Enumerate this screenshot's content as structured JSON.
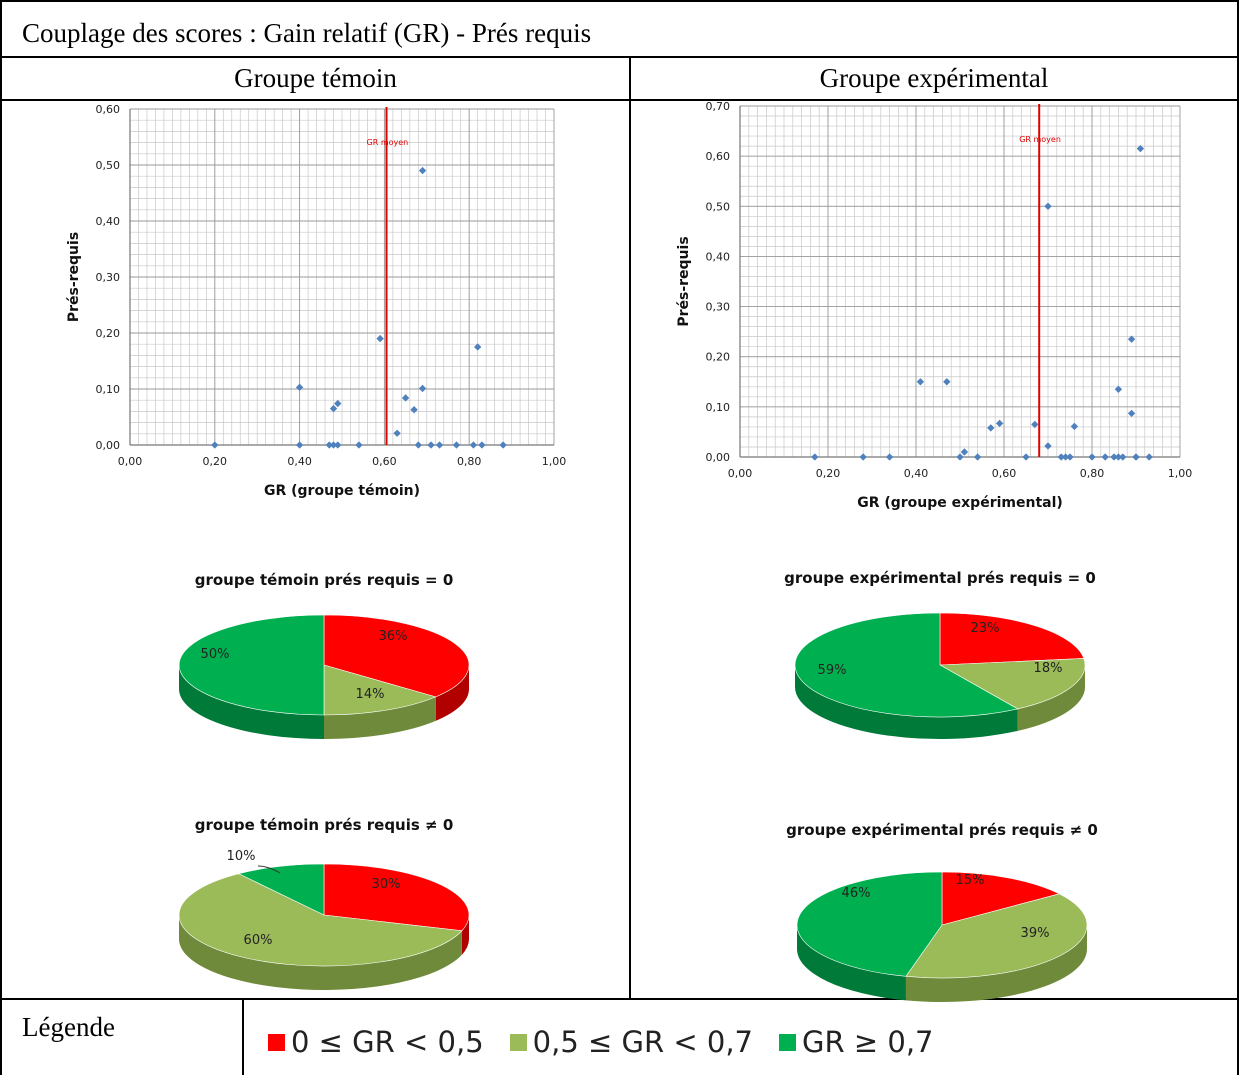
{
  "title": "Couplage des scores : Gain relatif (GR) - Prés requis",
  "columns": [
    "Groupe témoin",
    "Groupe expérimental"
  ],
  "legend": {
    "label": "Légende",
    "items": [
      {
        "text": "0 ≤ GR < 0,5",
        "color": "#ff0000"
      },
      {
        "text": "0,5 ≤ GR < 0,7",
        "color": "#9bbb59"
      },
      {
        "text": "GR ≥ 0,7",
        "color": "#00b050"
      }
    ]
  },
  "chart_data": [
    {
      "type": "scatter",
      "group": "Groupe témoin",
      "xlabel": "GR (groupe témoin)",
      "ylabel": "Prés-requis",
      "xlim": [
        0,
        1
      ],
      "ylim": [
        0,
        0.6
      ],
      "xticks": [
        "0,00",
        "0,20",
        "0,40",
        "0,60",
        "0,80",
        "1,00"
      ],
      "yticks": [
        "0,00",
        "0,10",
        "0,20",
        "0,30",
        "0,40",
        "0,50",
        "0,60"
      ],
      "mean_line": {
        "x": 0.605,
        "label": "GR moyen"
      },
      "grid": true,
      "points": [
        [
          0.2,
          0
        ],
        [
          0.4,
          0
        ],
        [
          0.4,
          0.103
        ],
        [
          0.47,
          0
        ],
        [
          0.48,
          0
        ],
        [
          0.49,
          0
        ],
        [
          0.48,
          0.065
        ],
        [
          0.49,
          0.074
        ],
        [
          0.54,
          0
        ],
        [
          0.59,
          0.19
        ],
        [
          0.63,
          0.021
        ],
        [
          0.65,
          0.084
        ],
        [
          0.67,
          0.063
        ],
        [
          0.68,
          0
        ],
        [
          0.69,
          0.101
        ],
        [
          0.69,
          0.49
        ],
        [
          0.71,
          0
        ],
        [
          0.73,
          0
        ],
        [
          0.77,
          0
        ],
        [
          0.81,
          0
        ],
        [
          0.82,
          0.175
        ],
        [
          0.83,
          0
        ],
        [
          0.88,
          0
        ]
      ]
    },
    {
      "type": "scatter",
      "group": "Groupe expérimental",
      "xlabel": "GR (groupe expérimental)",
      "ylabel": "Prés-requis",
      "xlim": [
        0,
        1
      ],
      "ylim": [
        0,
        0.7
      ],
      "xticks": [
        "0,00",
        "0,20",
        "0,40",
        "0,60",
        "0,80",
        "1,00"
      ],
      "yticks": [
        "0,00",
        "0,10",
        "0,20",
        "0,30",
        "0,40",
        "0,50",
        "0,60",
        "0,70"
      ],
      "mean_line": {
        "x": 0.68,
        "label": "GR moyen"
      },
      "grid": true,
      "points": [
        [
          0.17,
          0
        ],
        [
          0.28,
          0
        ],
        [
          0.34,
          0
        ],
        [
          0.41,
          0.15
        ],
        [
          0.47,
          0.15
        ],
        [
          0.5,
          0
        ],
        [
          0.51,
          0.01
        ],
        [
          0.54,
          0
        ],
        [
          0.57,
          0.058
        ],
        [
          0.59,
          0.067
        ],
        [
          0.65,
          0
        ],
        [
          0.67,
          0.065
        ],
        [
          0.7,
          0.022
        ],
        [
          0.7,
          0.5
        ],
        [
          0.73,
          0
        ],
        [
          0.74,
          0
        ],
        [
          0.75,
          0
        ],
        [
          0.76,
          0.061
        ],
        [
          0.8,
          0
        ],
        [
          0.83,
          0
        ],
        [
          0.85,
          0
        ],
        [
          0.86,
          0.135
        ],
        [
          0.86,
          0
        ],
        [
          0.87,
          0
        ],
        [
          0.89,
          0.087
        ],
        [
          0.89,
          0.235
        ],
        [
          0.9,
          0
        ],
        [
          0.9,
          0
        ],
        [
          0.91,
          0.615
        ],
        [
          0.93,
          0
        ]
      ]
    },
    {
      "type": "pie",
      "title": "groupe témoin prés requis = 0",
      "slices": [
        {
          "label": "0 ≤ GR < 0,5",
          "value": 36,
          "text": "36%"
        },
        {
          "label": "0,5 ≤ GR < 0,7",
          "value": 14,
          "text": "14%"
        },
        {
          "label": "GR ≥ 0,7",
          "value": 50,
          "text": "50%"
        }
      ]
    },
    {
      "type": "pie",
      "title": "groupe expérimental prés requis = 0",
      "slices": [
        {
          "label": "0 ≤ GR < 0,5",
          "value": 23,
          "text": "23%"
        },
        {
          "label": "0,5 ≤ GR < 0,7",
          "value": 18,
          "text": "18%"
        },
        {
          "label": "GR ≥ 0,7",
          "value": 59,
          "text": "59%"
        }
      ]
    },
    {
      "type": "pie",
      "title": "groupe témoin prés requis ≠ 0",
      "slices": [
        {
          "label": "0 ≤ GR < 0,5",
          "value": 30,
          "text": "30%"
        },
        {
          "label": "0,5 ≤ GR < 0,7",
          "value": 60,
          "text": "60%"
        },
        {
          "label": "GR ≥ 0,7",
          "value": 10,
          "text": "10%"
        }
      ]
    },
    {
      "type": "pie",
      "title": "groupe expérimental prés requis ≠ 0",
      "slices": [
        {
          "label": "0 ≤ GR < 0,5",
          "value": 15,
          "text": "15%"
        },
        {
          "label": "0,5 ≤ GR < 0,7",
          "value": 39,
          "text": "39%"
        },
        {
          "label": "GR ≥ 0,7",
          "value": 46,
          "text": "46%"
        }
      ]
    }
  ]
}
